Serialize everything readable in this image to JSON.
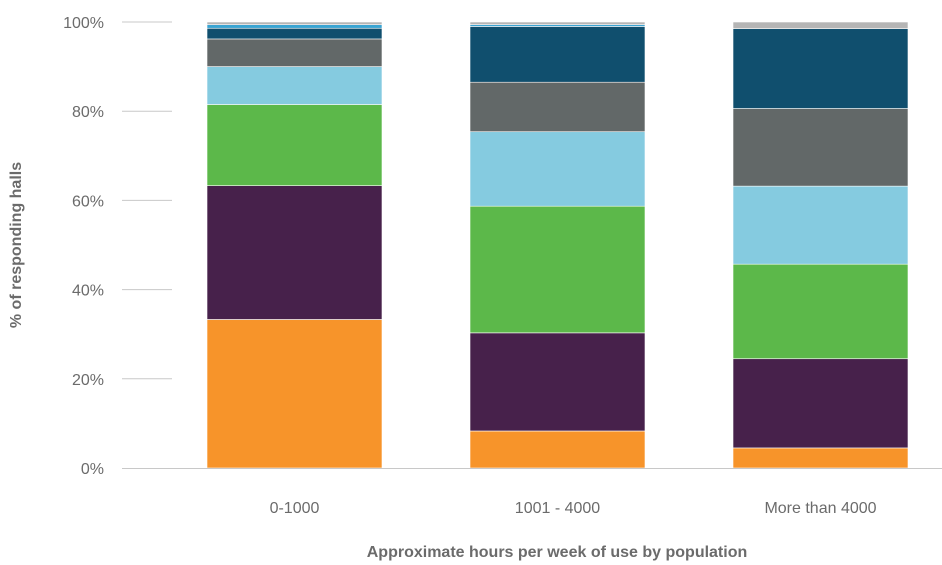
{
  "chart_data": {
    "type": "bar",
    "stacked": true,
    "xlabel": "Approximate hours per week of use by population",
    "ylabel": "% of responding halls",
    "ylim": [
      0,
      100
    ],
    "y_ticks": [
      "0%",
      "20%",
      "40%",
      "60%",
      "80%",
      "100%"
    ],
    "grid": false,
    "categories": [
      "0-1000",
      "1001 - 4000",
      "More than 4000"
    ],
    "series": [
      {
        "color": "#f7942a",
        "values": [
          33.3,
          8.3,
          4.5
        ]
      },
      {
        "color": "#47214b",
        "values": [
          30.0,
          22.0,
          20.0
        ]
      },
      {
        "color": "#5cb84a",
        "values": [
          18.2,
          28.4,
          21.2
        ]
      },
      {
        "color": "#85cbe0",
        "values": [
          8.5,
          16.7,
          17.5
        ]
      },
      {
        "color": "#626868",
        "values": [
          6.2,
          11.1,
          17.4
        ]
      },
      {
        "color": "#104f6e",
        "values": [
          2.4,
          12.5,
          17.9
        ]
      },
      {
        "color": "#3aa4d2",
        "values": [
          0.8,
          0.4,
          0.0
        ]
      },
      {
        "color": "#b5b5b5",
        "values": [
          0.6,
          0.6,
          1.5
        ]
      }
    ]
  }
}
